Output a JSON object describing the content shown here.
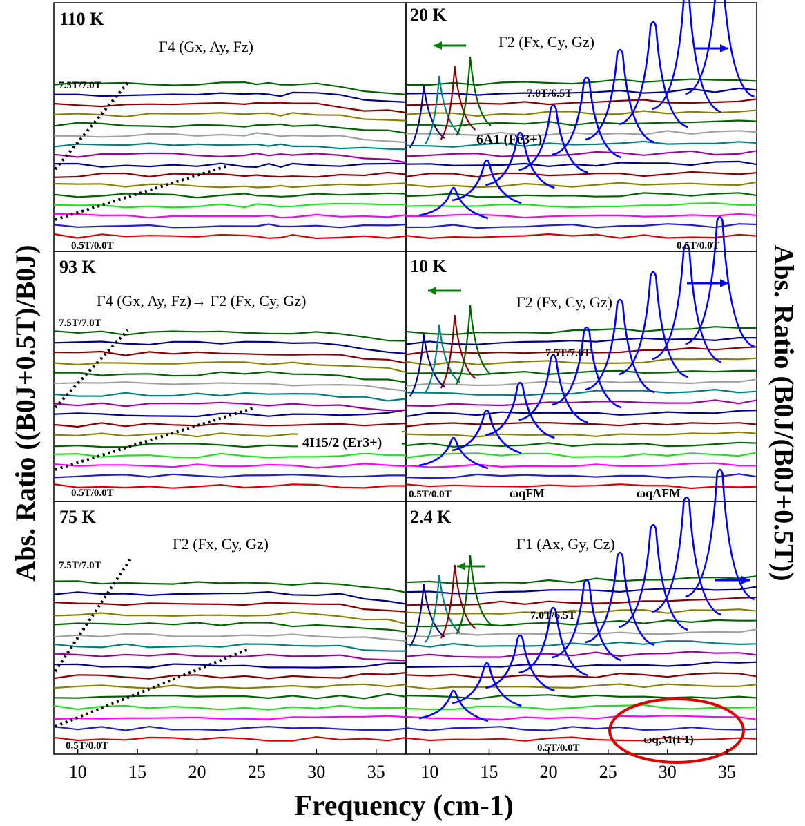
{
  "figure": {
    "ylabel_left": "Abs. Ratio ((B0J+0.5T)/B0J)",
    "ylabel_right": "Abs. Ratio (B0J/(B0J+0.5T))",
    "xlabel": "Frequency (cm-1)",
    "xticks": [
      "10",
      "15",
      "20",
      "25",
      "30",
      "35"
    ],
    "xlim": [
      8,
      37.5
    ],
    "line_colors": [
      "#e00000",
      "#2020d0",
      "#ff00ff",
      "#20e020",
      "#006400",
      "#8b8000",
      "#8b0000",
      "#00008b",
      "#a000a0",
      "#008080",
      "#a0a0a0",
      "#ff7f00"
    ],
    "blue_peaks": "#0000ff",
    "highlight": "#e00000"
  },
  "chart_data": [
    {
      "type": "line",
      "panel": "110 K",
      "temperature": "110 K",
      "phase": "Γ4 (Gx, Ay, Fz)",
      "top_field": "7.5T/7.0T",
      "bottom_field": "0.5T/0.0T",
      "annotations": [],
      "x": [
        8,
        10,
        12,
        14,
        16,
        18,
        20,
        22,
        24,
        25,
        26,
        27,
        28,
        30,
        32,
        34,
        36,
        37.5
      ],
      "series_count": 16
    },
    {
      "type": "line",
      "panel": "20 K",
      "temperature": "20 K",
      "phase": "Γ2 (Fx, Cy, Gz)",
      "top_field": "7.0T/6.5T",
      "bottom_field": "0.5T/0.0T",
      "annotations": [
        "6A1 (Fe3+)"
      ],
      "x": [
        8,
        10,
        12,
        14,
        16,
        18,
        20,
        22,
        24,
        26,
        28,
        30,
        32,
        34,
        36,
        37.5
      ],
      "series_count": 16
    },
    {
      "type": "line",
      "panel": "93 K",
      "temperature": "93 K",
      "phase": "Γ4 (Gx, Ay, Fz)→ Γ2 (Fx, Cy, Gz)",
      "top_field": "7.5T/7.0T",
      "bottom_field": "0.5T/0.0T",
      "annotations": [
        "4I15/2 (Er3+)"
      ],
      "x": [
        8,
        10,
        12,
        14,
        16,
        18,
        20,
        22,
        24,
        26,
        28,
        30,
        32,
        34,
        36,
        37.5
      ],
      "series_count": 16
    },
    {
      "type": "line",
      "panel": "10 K",
      "temperature": "10 K",
      "phase": "Γ2 (Fx, Cy, Gz)",
      "top_field": "7.5T/7.0T",
      "bottom_field": "0.5T/0.0T",
      "annotations": [
        "ωqFM",
        "ωqAFM"
      ],
      "x": [
        8,
        10,
        12,
        14,
        16,
        18,
        20,
        22,
        24,
        26,
        28,
        30,
        32,
        34,
        36,
        37.5
      ],
      "series_count": 16
    },
    {
      "type": "line",
      "panel": "75 K",
      "temperature": "75 K",
      "phase": "Γ2 (Fx, Cy, Gz)",
      "top_field": "7.5T/7.0T",
      "bottom_field": "0.5T/0.0T",
      "annotations": [],
      "x": [
        8,
        10,
        12,
        14,
        16,
        18,
        20,
        22,
        24,
        26,
        28,
        30,
        32,
        34,
        36,
        37.5
      ],
      "series_count": 16
    },
    {
      "type": "line",
      "panel": "2.4 K",
      "temperature": "2.4 K",
      "phase": "Γ1 (Ax, Gy, Cz)",
      "top_field": "7.0T/6.5T",
      "bottom_field": "0.5T/0.0T",
      "annotations": [
        "ωq,M(Γ1)"
      ],
      "x": [
        8,
        10,
        12,
        14,
        16,
        18,
        20,
        22,
        24,
        26,
        28,
        30,
        32,
        34,
        36,
        37.5
      ],
      "series_count": 16
    }
  ]
}
